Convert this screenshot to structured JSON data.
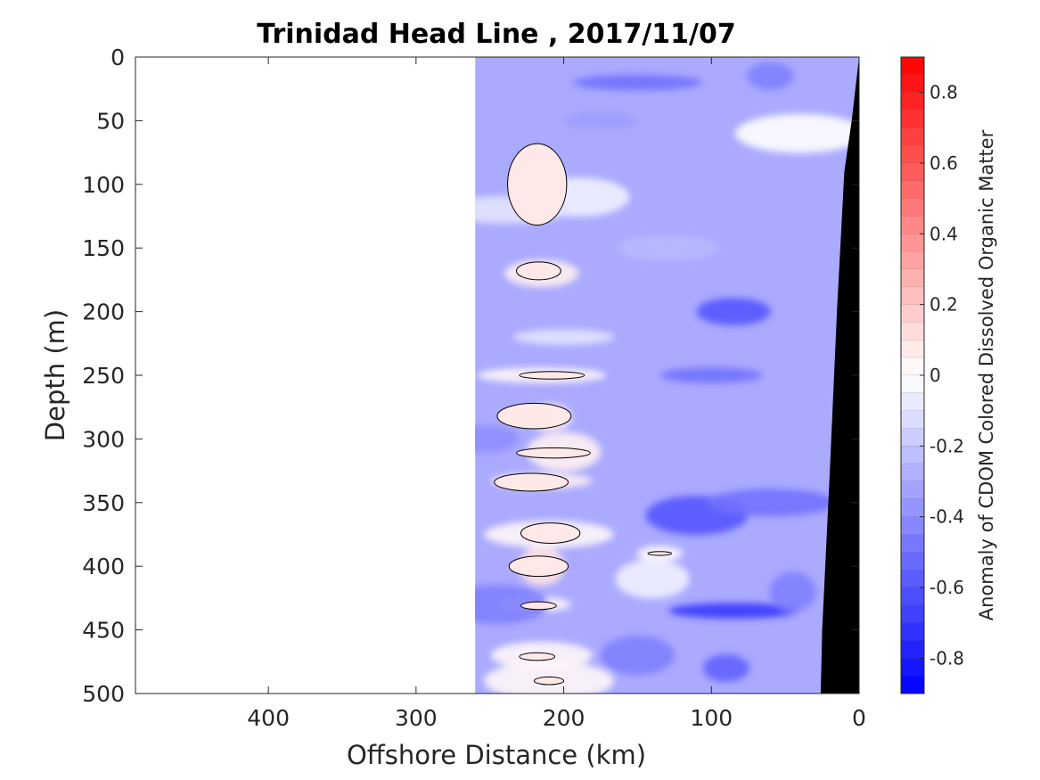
{
  "chart_data": {
    "type": "heatmap",
    "title": "Trinidad Head Line , 2017/11/07",
    "xlabel": "Offshore Distance (km)",
    "ylabel": "Depth (m)",
    "colorbar_label": "Anomaly of CDOM Colored Dissolved Organic Matter",
    "xlim": [
      490,
      0
    ],
    "ylim": [
      0,
      500
    ],
    "x_reversed": true,
    "y_reversed": true,
    "x_ticks": [
      400,
      300,
      200,
      100,
      0
    ],
    "y_ticks": [
      0,
      50,
      100,
      150,
      200,
      250,
      300,
      350,
      400,
      450,
      500
    ],
    "colorbar_range": [
      -0.9,
      0.9
    ],
    "colorbar_ticks": [
      0.8,
      0.6,
      0.4,
      0.2,
      0,
      -0.2,
      -0.4,
      -0.6,
      -0.8
    ],
    "colorbar_levels": 36,
    "colormap": {
      "negative": "#0000ff",
      "zero": "#ffffff",
      "positive": "#ff0000"
    },
    "data_extent_km": [
      0,
      260
    ],
    "bathymetry_color": "#000000",
    "bathymetry": [
      {
        "x": 0,
        "depth": 0
      },
      {
        "x": 5,
        "depth": 50
      },
      {
        "x": 10,
        "depth": 90
      },
      {
        "x": 15,
        "depth": 200
      },
      {
        "x": 20,
        "depth": 330
      },
      {
        "x": 25,
        "depth": 450
      },
      {
        "x": 26,
        "depth": 500
      }
    ],
    "anomaly_features": [
      {
        "x": 220,
        "depth": 100,
        "value": 0.1
      },
      {
        "x": 215,
        "depth": 170,
        "value": 0.05
      },
      {
        "x": 190,
        "depth": 110,
        "value": -0.05
      },
      {
        "x": 215,
        "depth": 250,
        "value": 0.03
      },
      {
        "x": 210,
        "depth": 283,
        "value": 0.06
      },
      {
        "x": 200,
        "depth": 310,
        "value": 0.05
      },
      {
        "x": 215,
        "depth": 333,
        "value": 0.05
      },
      {
        "x": 210,
        "depth": 375,
        "value": 0.03
      },
      {
        "x": 215,
        "depth": 400,
        "value": 0.1
      },
      {
        "x": 220,
        "depth": 430,
        "value": 0.03
      },
      {
        "x": 215,
        "depth": 470,
        "value": 0.03
      },
      {
        "x": 210,
        "depth": 490,
        "value": 0.03
      },
      {
        "x": 135,
        "depth": 390,
        "value": 0.02
      },
      {
        "x": 85,
        "depth": 200,
        "value": -0.6
      },
      {
        "x": 110,
        "depth": 360,
        "value": -0.6
      },
      {
        "x": 85,
        "depth": 435,
        "value": -0.7
      },
      {
        "x": 90,
        "depth": 480,
        "value": -0.55
      },
      {
        "x": 150,
        "depth": 470,
        "value": -0.45
      },
      {
        "x": 100,
        "depth": 250,
        "value": -0.5
      },
      {
        "x": 60,
        "depth": 350,
        "value": -0.5
      },
      {
        "x": 45,
        "depth": 420,
        "value": -0.45
      },
      {
        "x": 175,
        "depth": 50,
        "value": -0.35
      },
      {
        "x": 130,
        "depth": 150,
        "value": -0.25
      },
      {
        "x": 40,
        "depth": 60,
        "value": 0.0
      },
      {
        "x": 40,
        "depth": 150,
        "value": -0.3
      },
      {
        "x": 255,
        "depth": 300,
        "value": -0.4
      },
      {
        "x": 245,
        "depth": 430,
        "value": -0.45
      },
      {
        "x": 150,
        "depth": 20,
        "value": -0.5
      },
      {
        "x": 60,
        "depth": 15,
        "value": -0.45
      },
      {
        "x": 140,
        "depth": 410,
        "value": -0.05
      },
      {
        "x": 200,
        "depth": 220,
        "value": -0.1
      },
      {
        "x": 240,
        "depth": 120,
        "value": -0.1
      }
    ],
    "zero_contours": [
      {
        "x": 218,
        "depth": 100,
        "rx": 20,
        "ry": 32
      },
      {
        "x": 217,
        "depth": 168,
        "rx": 15,
        "ry": 7
      },
      {
        "x": 208,
        "depth": 250,
        "rx": 22,
        "ry": 3
      },
      {
        "x": 220,
        "depth": 282,
        "rx": 25,
        "ry": 10
      },
      {
        "x": 207,
        "depth": 311,
        "rx": 25,
        "ry": 4
      },
      {
        "x": 222,
        "depth": 334,
        "rx": 25,
        "ry": 7
      },
      {
        "x": 209,
        "depth": 374,
        "rx": 20,
        "ry": 8
      },
      {
        "x": 217,
        "depth": 400,
        "rx": 20,
        "ry": 8
      },
      {
        "x": 217,
        "depth": 431,
        "rx": 12,
        "ry": 3
      },
      {
        "x": 218,
        "depth": 471,
        "rx": 12,
        "ry": 3
      },
      {
        "x": 210,
        "depth": 490,
        "rx": 10,
        "ry": 3
      },
      {
        "x": 135,
        "depth": 390,
        "rx": 8,
        "ry": 1.5
      }
    ]
  }
}
